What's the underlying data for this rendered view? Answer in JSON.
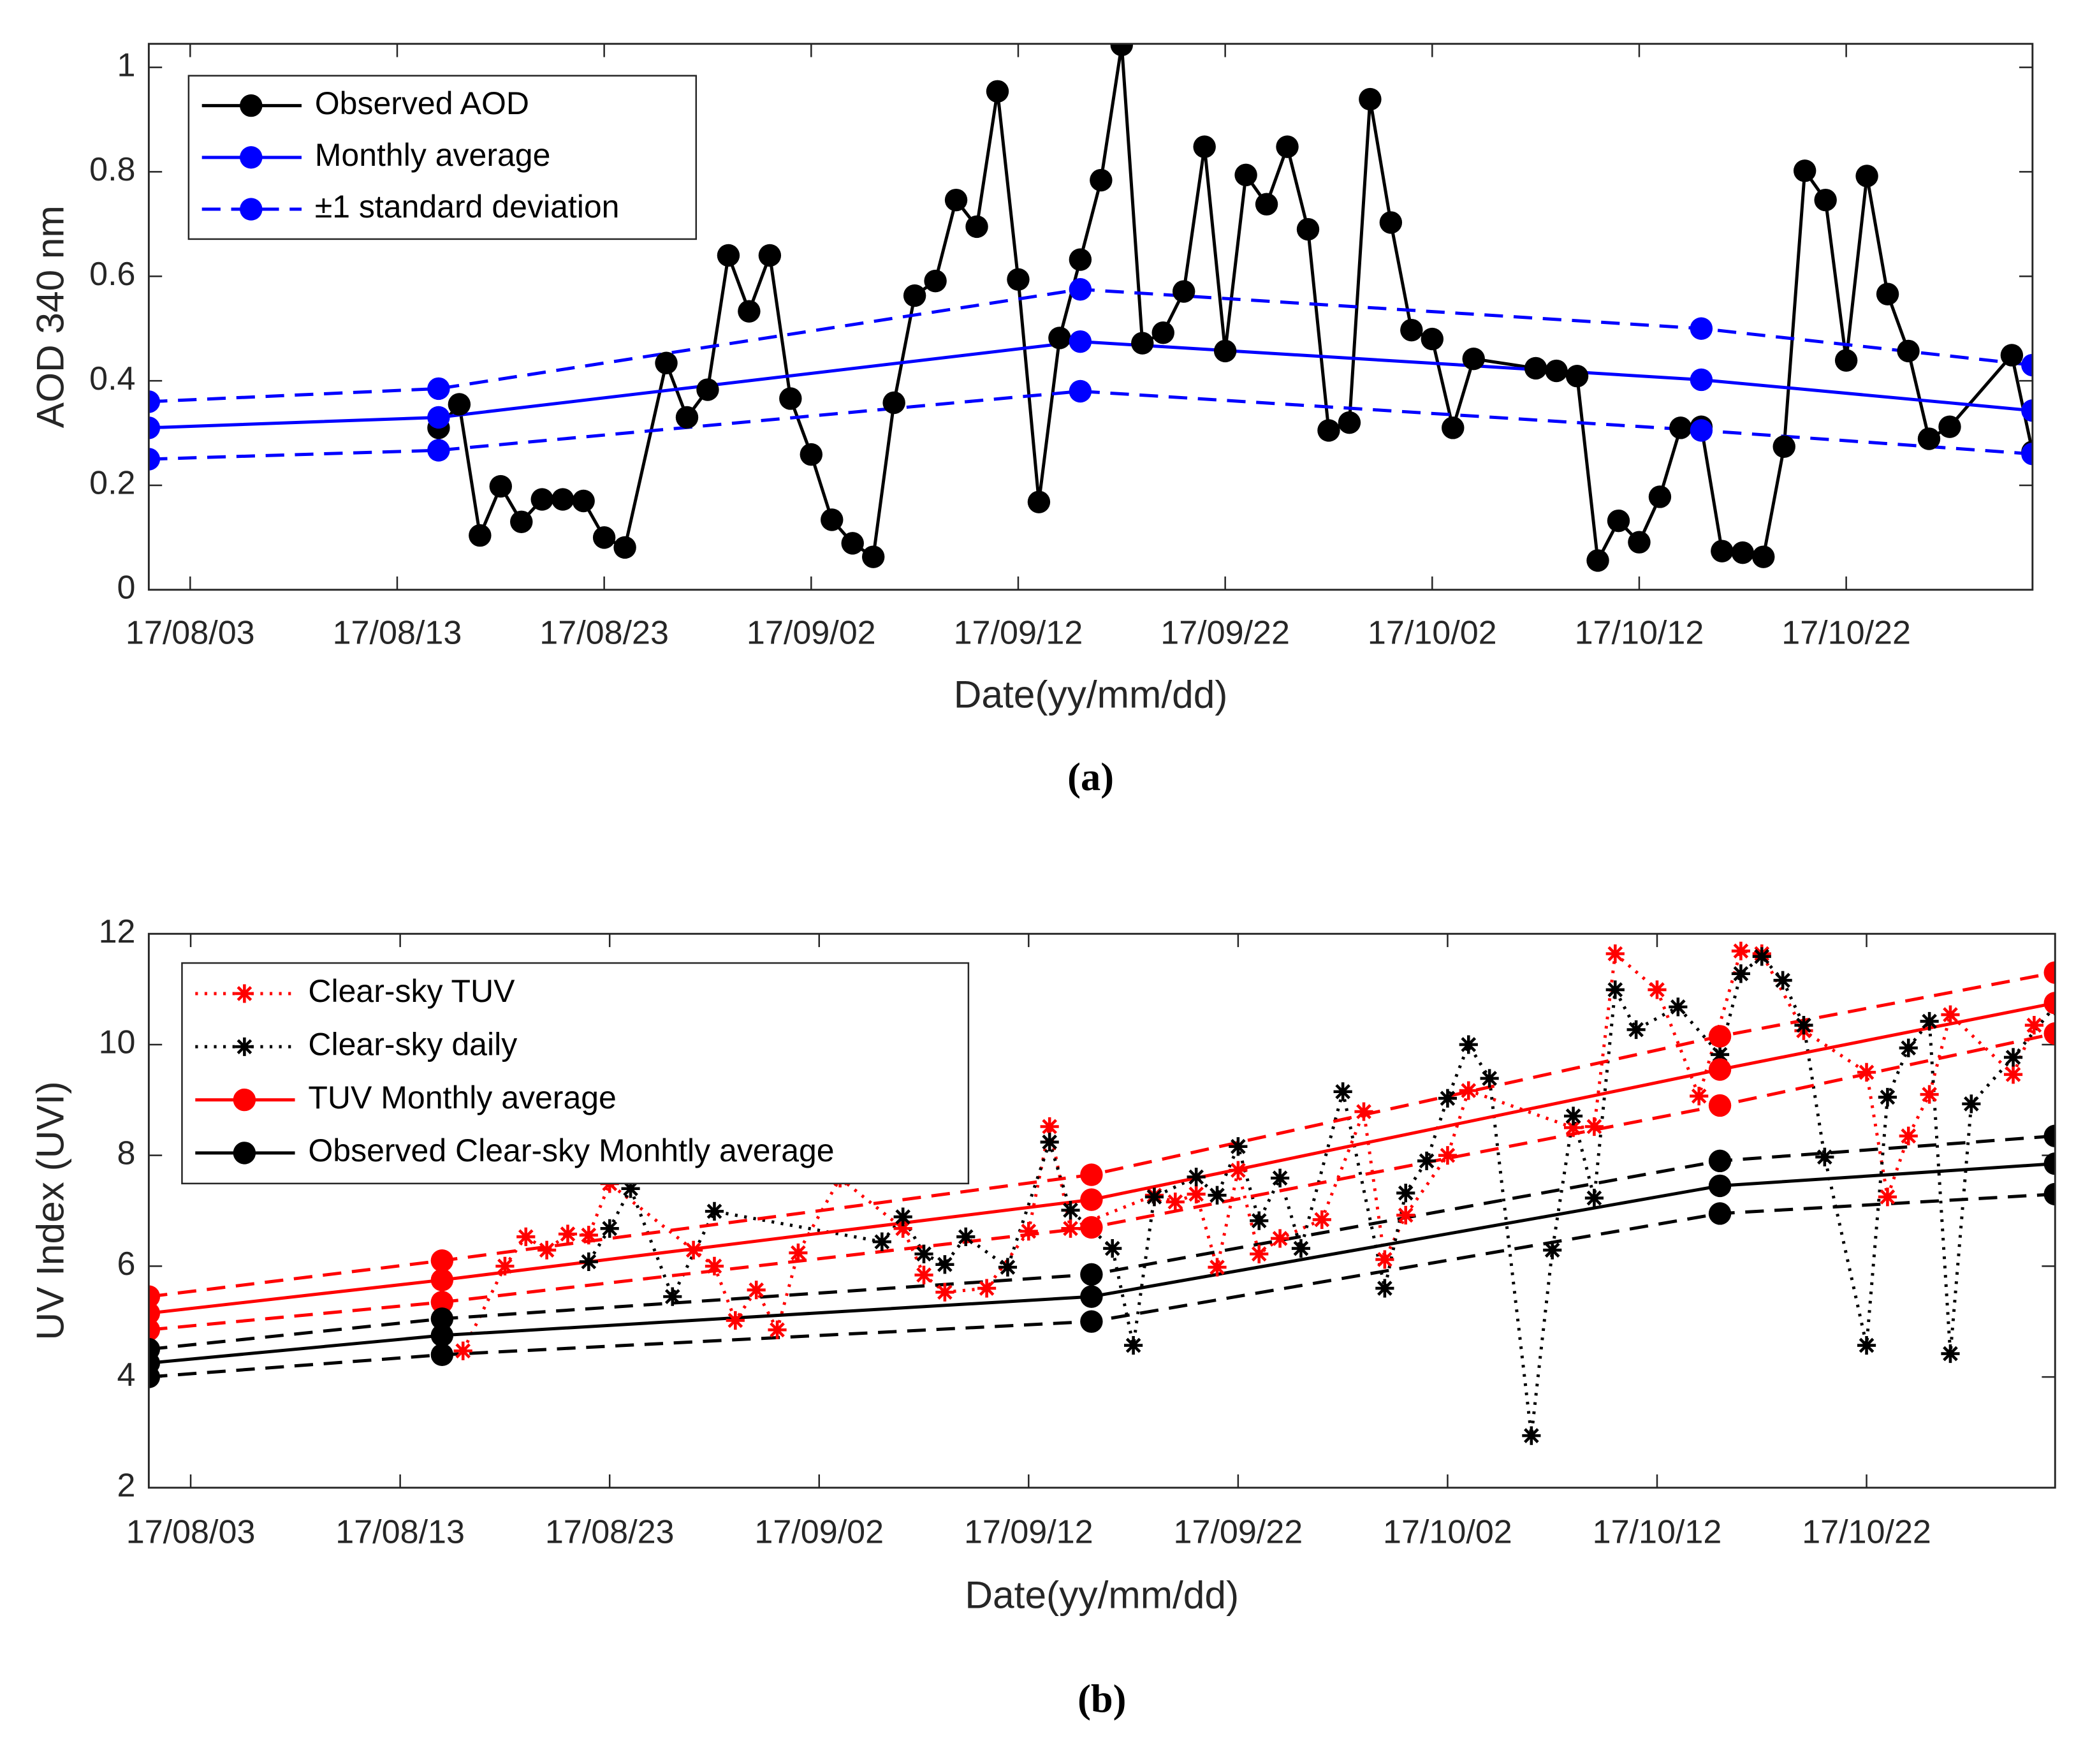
{
  "chart_data": [
    {
      "type": "line",
      "caption": "(a)",
      "x_label": "Date(yy/mm/dd)",
      "y_label": "AOD 340 nm",
      "xlim": [
        "17/08/01",
        "17/10/31"
      ],
      "xticks": [
        "17/08/03",
        "17/08/13",
        "17/08/23",
        "17/09/02",
        "17/09/12",
        "17/09/22",
        "17/10/02",
        "17/10/12",
        "17/10/22"
      ],
      "ylim": [
        0,
        1.045
      ],
      "yticks": [
        0,
        0.2,
        0.4,
        0.6,
        0.8,
        1
      ],
      "legend": "upper left",
      "series": [
        {
          "name": "Observed AOD",
          "color": "#000000",
          "line_style": "solid",
          "marker": "circle",
          "x": [
            "17/08/15",
            "17/08/16",
            "17/08/17",
            "17/08/18",
            "17/08/19",
            "17/08/20",
            "17/08/21",
            "17/08/22",
            "17/08/23",
            "17/08/24",
            "17/08/26",
            "17/08/27",
            "17/08/28",
            "17/08/29",
            "17/08/30",
            "17/08/31",
            "17/09/01",
            "17/09/02",
            "17/09/03",
            "17/09/04",
            "17/09/05",
            "17/09/06",
            "17/09/07",
            "17/09/08",
            "17/09/09",
            "17/09/10",
            "17/09/11",
            "17/09/12",
            "17/09/13",
            "17/09/14",
            "17/09/15",
            "17/09/16",
            "17/09/17",
            "17/09/18",
            "17/09/19",
            "17/09/20",
            "17/09/21",
            "17/09/22",
            "17/09/23",
            "17/09/24",
            "17/09/25",
            "17/09/26",
            "17/09/27",
            "17/09/28",
            "17/09/29",
            "17/09/30",
            "17/10/01",
            "17/10/02",
            "17/10/03",
            "17/10/04",
            "17/10/07",
            "17/10/08",
            "17/10/09",
            "17/10/10",
            "17/10/11",
            "17/10/12",
            "17/10/13",
            "17/10/14",
            "17/10/15",
            "17/10/16",
            "17/10/17",
            "17/10/18",
            "17/10/19",
            "17/10/20",
            "17/10/21",
            "17/10/22",
            "17/10/23",
            "17/10/24",
            "17/10/25",
            "17/10/26",
            "17/10/27",
            "17/10/30",
            "17/10/31"
          ],
          "values": [
            0.31,
            0.355,
            0.104,
            0.198,
            0.13,
            0.173,
            0.173,
            0.17,
            0.1,
            0.081,
            0.434,
            0.33,
            0.383,
            0.64,
            0.533,
            0.64,
            0.366,
            0.259,
            0.134,
            0.089,
            0.063,
            0.358,
            0.563,
            0.591,
            0.746,
            0.695,
            0.954,
            0.594,
            0.168,
            0.482,
            0.632,
            0.784,
            1.043,
            0.472,
            0.492,
            0.571,
            0.848,
            0.457,
            0.794,
            0.738,
            0.848,
            0.69,
            0.305,
            0.32,
            0.939,
            0.703,
            0.497,
            0.48,
            0.31,
            0.442,
            0.424,
            0.419,
            0.409,
            0.056,
            0.132,
            0.091,
            0.178,
            0.31,
            0.312,
            0.074,
            0.071,
            0.063,
            0.274,
            0.802,
            0.746,
            0.439,
            0.792,
            0.566,
            0.457,
            0.289,
            0.312,
            0.449,
            0.264
          ]
        },
        {
          "name": "Monthly average",
          "color": "#0000ff",
          "line_style": "solid",
          "marker": "circle",
          "x": [
            "17/08/01",
            "17/08/15",
            "17/09/15",
            "17/10/15",
            "17/10/31"
          ],
          "values": [
            0.31,
            0.33,
            0.475,
            0.402,
            0.343
          ]
        },
        {
          "name": "±1 standard deviation",
          "color": "#0000ff",
          "line_style": "dashed",
          "marker": "circle",
          "x": [
            "17/08/01",
            "17/08/15",
            "17/09/15",
            "17/10/15",
            "17/10/31"
          ],
          "values": [
            0.36,
            0.385,
            0.575,
            0.5,
            0.43
          ]
        },
        {
          "color": "#0000ff",
          "line_style": "dashed",
          "marker": "circle",
          "x": [
            "17/08/01",
            "17/08/15",
            "17/09/15",
            "17/10/15",
            "17/10/31"
          ],
          "values": [
            0.25,
            0.267,
            0.38,
            0.305,
            0.26
          ]
        }
      ]
    },
    {
      "type": "line",
      "caption": "(b)",
      "x_label": "Date(yy/mm/dd)",
      "y_label": "UV Index (UVI)",
      "xlim": [
        "17/08/01",
        "17/10/31"
      ],
      "xticks": [
        "17/08/03",
        "17/08/13",
        "17/08/23",
        "17/09/02",
        "17/09/12",
        "17/09/22",
        "17/10/02",
        "17/10/12",
        "17/10/22"
      ],
      "ylim": [
        2,
        12
      ],
      "yticks": [
        2,
        4,
        6,
        8,
        10,
        12
      ],
      "legend": "upper left",
      "series": [
        {
          "name": "Clear-sky TUV",
          "color": "#ff0000",
          "line_style": "dotted",
          "marker": "asterisk",
          "x": [
            "17/08/16",
            "17/08/18",
            "17/08/19",
            "17/08/20",
            "17/08/21",
            "17/08/22",
            "17/08/23",
            "17/08/27",
            "17/08/28",
            "17/08/29",
            "17/08/30",
            "17/08/31",
            "17/09/01",
            "17/09/03",
            "17/09/06",
            "17/09/07",
            "17/09/08",
            "17/09/10",
            "17/09/12",
            "17/09/13",
            "17/09/14",
            "17/09/18",
            "17/09/19",
            "17/09/20",
            "17/09/21",
            "17/09/22",
            "17/09/23",
            "17/09/24",
            "17/09/26",
            "17/09/28",
            "17/09/29",
            "17/09/30",
            "17/10/02",
            "17/10/03",
            "17/10/08",
            "17/10/09",
            "17/10/10",
            "17/10/12",
            "17/10/14",
            "17/10/16",
            "17/10/17",
            "17/10/19",
            "17/10/22",
            "17/10/23",
            "17/10/24",
            "17/10/25",
            "17/10/26",
            "17/10/29",
            "17/10/30"
          ],
          "values": [
            4.47,
            6.0,
            6.53,
            6.29,
            6.58,
            6.56,
            7.49,
            6.29,
            6.0,
            5.02,
            5.57,
            4.85,
            6.24,
            7.59,
            6.68,
            5.84,
            5.53,
            5.6,
            6.63,
            8.52,
            6.68,
            7.28,
            7.16,
            7.3,
            5.98,
            7.73,
            6.22,
            6.5,
            6.84,
            8.79,
            6.12,
            6.92,
            8.0,
            9.17,
            8.5,
            8.52,
            11.64,
            10.99,
            9.07,
            11.69,
            11.64,
            10.25,
            9.5,
            7.25,
            8.35,
            9.1,
            10.54,
            9.46,
            10.35
          ]
        },
        {
          "name": "Clear-sky daily",
          "color": "#000000",
          "line_style": "dotted",
          "marker": "asterisk",
          "x": [
            "17/08/22",
            "17/08/23",
            "17/08/24",
            "17/08/26",
            "17/08/28",
            "17/09/05",
            "17/09/06",
            "17/09/07",
            "17/09/08",
            "17/09/09",
            "17/09/11",
            "17/09/13",
            "17/09/14",
            "17/09/16",
            "17/09/17",
            "17/09/18",
            "17/09/20",
            "17/09/21",
            "17/09/22",
            "17/09/23",
            "17/09/24",
            "17/09/25",
            "17/09/27",
            "17/09/29",
            "17/09/30",
            "17/10/01",
            "17/10/02",
            "17/10/03",
            "17/10/04",
            "17/10/06",
            "17/10/07",
            "17/10/08",
            "17/10/09",
            "17/10/10",
            "17/10/11",
            "17/10/13",
            "17/10/15",
            "17/10/16",
            "17/10/17",
            "17/10/18",
            "17/10/19",
            "17/10/20",
            "17/10/22",
            "17/10/23",
            "17/10/24",
            "17/10/25",
            "17/10/26",
            "17/10/27",
            "17/10/29",
            "17/10/31"
          ],
          "values": [
            6.08,
            6.68,
            7.4,
            5.45,
            6.99,
            6.44,
            6.89,
            6.22,
            6.03,
            6.53,
            5.98,
            8.24,
            7.01,
            6.32,
            4.57,
            7.25,
            7.61,
            7.28,
            8.16,
            6.82,
            7.59,
            6.32,
            9.15,
            5.6,
            7.32,
            7.9,
            9.03,
            10.0,
            9.39,
            2.94,
            6.29,
            8.71,
            7.23,
            10.99,
            10.27,
            10.68,
            9.82,
            11.28,
            11.59,
            11.16,
            10.35,
            7.97,
            4.57,
            9.05,
            9.94,
            10.42,
            4.42,
            8.93,
            9.77,
            10.7
          ]
        },
        {
          "name": "TUV Monthly average",
          "color": "#ff0000",
          "line_style": "solid",
          "marker": "circle",
          "x": [
            "17/08/01",
            "17/08/15",
            "17/09/15",
            "17/10/15",
            "17/10/31"
          ],
          "values": [
            5.15,
            5.75,
            7.2,
            9.55,
            10.75
          ]
        },
        {
          "name": "Observed Clear-sky Monhtly average",
          "color": "#000000",
          "line_style": "solid",
          "marker": "circle",
          "x": [
            "17/08/01",
            "17/08/15",
            "17/09/15",
            "17/10/15",
            "17/10/31"
          ],
          "values": [
            4.25,
            4.75,
            5.45,
            7.45,
            7.85
          ]
        },
        {
          "color": "#ff0000",
          "line_style": "dashed",
          "marker": "circle",
          "x": [
            "17/08/01",
            "17/08/15",
            "17/09/15",
            "17/10/15",
            "17/10/31"
          ],
          "values": [
            5.45,
            6.1,
            7.65,
            10.15,
            11.3
          ]
        },
        {
          "color": "#ff0000",
          "line_style": "dashed",
          "marker": "circle",
          "x": [
            "17/08/01",
            "17/08/15",
            "17/09/15",
            "17/10/15",
            "17/10/31"
          ],
          "values": [
            4.85,
            5.35,
            6.7,
            8.9,
            10.2
          ]
        },
        {
          "color": "#000000",
          "line_style": "dashed",
          "marker": "circle",
          "x": [
            "17/08/01",
            "17/08/15",
            "17/09/15",
            "17/10/15",
            "17/10/31"
          ],
          "values": [
            4.5,
            5.05,
            5.85,
            7.9,
            8.35
          ]
        },
        {
          "color": "#000000",
          "line_style": "dashed",
          "marker": "circle",
          "x": [
            "17/08/01",
            "17/08/15",
            "17/09/15",
            "17/10/15",
            "17/10/31"
          ],
          "values": [
            4.0,
            4.4,
            5.0,
            6.95,
            7.3
          ]
        }
      ]
    }
  ]
}
